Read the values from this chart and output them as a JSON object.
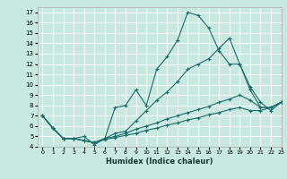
{
  "xlabel": "Humidex (Indice chaleur)",
  "bg_color": "#c8e8e0",
  "grid_color": "#ffffff",
  "line_color": "#1a6b6b",
  "xlim": [
    -0.5,
    23
  ],
  "ylim": [
    4,
    17.5
  ],
  "xticks": [
    0,
    1,
    2,
    3,
    4,
    5,
    6,
    7,
    8,
    9,
    10,
    11,
    12,
    13,
    14,
    15,
    16,
    17,
    18,
    19,
    20,
    21,
    22,
    23
  ],
  "yticks": [
    4,
    5,
    6,
    7,
    8,
    9,
    10,
    11,
    12,
    13,
    14,
    15,
    16,
    17
  ],
  "lines": [
    {
      "x": [
        0,
        1,
        2,
        3,
        4,
        5,
        6,
        7,
        8,
        9,
        10,
        11,
        12,
        13,
        14,
        15,
        16,
        17,
        18,
        19,
        20,
        21,
        22,
        23
      ],
      "y": [
        7.0,
        5.8,
        4.8,
        4.8,
        5.0,
        4.2,
        4.8,
        7.8,
        8.0,
        9.5,
        8.0,
        11.5,
        12.7,
        14.3,
        17.0,
        16.7,
        15.5,
        13.3,
        12.0,
        12.0,
        9.8,
        8.3,
        7.5,
        8.3
      ]
    },
    {
      "x": [
        0,
        1,
        2,
        3,
        4,
        5,
        6,
        7,
        8,
        9,
        10,
        11,
        12,
        13,
        14,
        15,
        16,
        17,
        18,
        19,
        20,
        21,
        22,
        23
      ],
      "y": [
        7.0,
        5.8,
        4.8,
        4.8,
        4.6,
        4.4,
        4.8,
        5.3,
        5.5,
        6.5,
        7.5,
        8.5,
        9.3,
        10.3,
        11.5,
        12.0,
        12.5,
        13.5,
        14.5,
        12.0,
        9.5,
        7.8,
        7.8,
        8.3
      ]
    },
    {
      "x": [
        0,
        1,
        2,
        3,
        4,
        5,
        6,
        7,
        8,
        9,
        10,
        11,
        12,
        13,
        14,
        15,
        16,
        17,
        18,
        19,
        20,
        21,
        22,
        23
      ],
      "y": [
        7.0,
        5.8,
        4.8,
        4.8,
        4.6,
        4.4,
        4.8,
        5.0,
        5.3,
        5.7,
        6.0,
        6.3,
        6.7,
        7.0,
        7.3,
        7.6,
        7.9,
        8.3,
        8.6,
        9.0,
        8.5,
        7.8,
        7.8,
        8.3
      ]
    },
    {
      "x": [
        0,
        1,
        2,
        3,
        4,
        5,
        6,
        7,
        8,
        9,
        10,
        11,
        12,
        13,
        14,
        15,
        16,
        17,
        18,
        19,
        20,
        21,
        22,
        23
      ],
      "y": [
        7.0,
        5.8,
        4.8,
        4.8,
        4.6,
        4.4,
        4.7,
        4.9,
        5.1,
        5.3,
        5.6,
        5.8,
        6.1,
        6.3,
        6.6,
        6.8,
        7.1,
        7.3,
        7.6,
        7.8,
        7.5,
        7.5,
        7.8,
        8.3
      ]
    }
  ]
}
